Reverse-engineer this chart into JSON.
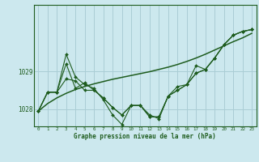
{
  "bg_color": "#cce8ee",
  "grid_color": "#aacdd5",
  "line_color": "#1e5c1e",
  "marker_color": "#1e5c1e",
  "xlabel": "Graphe pression niveau de la mer (hPa)",
  "xlim": [
    -0.5,
    23.5
  ],
  "ylim": [
    1027.55,
    1030.75
  ],
  "yticks": [
    1028,
    1029
  ],
  "yticklabels": [
    "1028",
    "1029"
  ],
  "xticks": [
    0,
    1,
    2,
    3,
    4,
    5,
    6,
    7,
    8,
    9,
    10,
    11,
    12,
    13,
    14,
    15,
    16,
    17,
    18,
    19,
    20,
    21,
    22,
    23
  ],
  "series1": [
    1027.95,
    1028.45,
    1028.45,
    1029.45,
    1028.85,
    1028.65,
    1028.55,
    1028.25,
    1027.85,
    1027.6,
    1028.1,
    1028.1,
    1027.85,
    1027.75,
    1028.35,
    1028.6,
    1028.65,
    1029.15,
    1029.05,
    1029.35,
    1029.7,
    1029.95,
    1030.05,
    1030.1
  ],
  "series2": [
    1027.95,
    1028.45,
    1028.45,
    1028.8,
    1028.75,
    1028.5,
    1028.5,
    1028.3,
    1028.05,
    1027.85,
    1028.1,
    1028.1,
    1027.8,
    1027.8,
    1028.35,
    1028.5,
    1028.65,
    1028.95,
    1029.05,
    1029.35,
    1029.7,
    1029.95,
    1030.05,
    1030.1
  ],
  "series3": [
    1027.95,
    1028.45,
    1028.45,
    1029.2,
    1028.55,
    1028.7,
    1028.5,
    1028.3,
    1028.05,
    1027.85,
    1028.1,
    1028.1,
    1027.8,
    1027.8,
    1028.35,
    1028.5,
    1028.65,
    1028.95,
    1029.05,
    1029.35,
    1029.7,
    1029.95,
    1030.05,
    1030.1
  ],
  "smooth": [
    1027.95,
    1028.15,
    1028.3,
    1028.42,
    1028.52,
    1028.6,
    1028.67,
    1028.73,
    1028.79,
    1028.84,
    1028.89,
    1028.94,
    1028.99,
    1029.05,
    1029.11,
    1029.18,
    1029.26,
    1029.35,
    1029.45,
    1029.56,
    1029.67,
    1029.78,
    1029.88,
    1030.0
  ]
}
